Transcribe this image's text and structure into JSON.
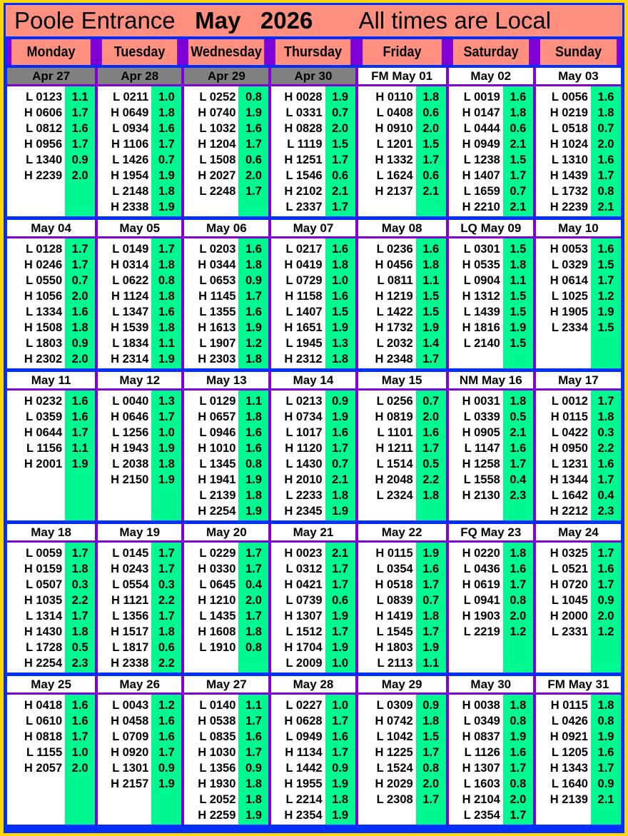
{
  "title": {
    "location": "Poole Entrance",
    "month": "May",
    "year": "2026",
    "note": "All times are Local"
  },
  "colors": {
    "header": "#FF9080",
    "heights": "#00F890",
    "past_date": "#808080",
    "column_divider": "#8000D8",
    "row_divider": "#0030FF",
    "frame": "#FFD700"
  },
  "days": [
    "Monday",
    "Tuesday",
    "Wednesday",
    "Thursday",
    "Friday",
    "Saturday",
    "Sunday"
  ],
  "weeks": [
    [
      {
        "date": "Apr 27",
        "past": true,
        "tides": [
          [
            "L 0123",
            "1.1"
          ],
          [
            "H 0606",
            "1.7"
          ],
          [
            "L 0812",
            "1.6"
          ],
          [
            "H 0956",
            "1.7"
          ],
          [
            "L 1340",
            "0.9"
          ],
          [
            "H 2239",
            "2.0"
          ]
        ]
      },
      {
        "date": "Apr 28",
        "past": true,
        "tides": [
          [
            "L 0211",
            "1.0"
          ],
          [
            "H 0649",
            "1.8"
          ],
          [
            "L 0934",
            "1.6"
          ],
          [
            "H 1106",
            "1.7"
          ],
          [
            "L 1426",
            "0.7"
          ],
          [
            "H 1954",
            "1.9"
          ],
          [
            "L 2148",
            "1.8"
          ],
          [
            "H 2338",
            "1.9"
          ]
        ]
      },
      {
        "date": "Apr 29",
        "past": true,
        "tides": [
          [
            "L 0252",
            "0.8"
          ],
          [
            "H 0740",
            "1.9"
          ],
          [
            "L 1032",
            "1.6"
          ],
          [
            "H 1204",
            "1.7"
          ],
          [
            "L 1508",
            "0.6"
          ],
          [
            "H 2027",
            "2.0"
          ],
          [
            "L 2248",
            "1.7"
          ]
        ]
      },
      {
        "date": "Apr 30",
        "past": true,
        "tides": [
          [
            "H 0028",
            "1.9"
          ],
          [
            "L 0331",
            "0.7"
          ],
          [
            "H 0828",
            "2.0"
          ],
          [
            "L 1119",
            "1.5"
          ],
          [
            "H 1251",
            "1.7"
          ],
          [
            "L 1546",
            "0.6"
          ],
          [
            "H 2102",
            "2.1"
          ],
          [
            "L 2337",
            "1.7"
          ]
        ]
      },
      {
        "date": "FM May 01",
        "tides": [
          [
            "H 0110",
            "1.8"
          ],
          [
            "L 0408",
            "0.6"
          ],
          [
            "H 0910",
            "2.0"
          ],
          [
            "L 1201",
            "1.5"
          ],
          [
            "H 1332",
            "1.7"
          ],
          [
            "L 1624",
            "0.6"
          ],
          [
            "H 2137",
            "2.1"
          ]
        ]
      },
      {
        "date": "May 02",
        "tides": [
          [
            "L 0019",
            "1.6"
          ],
          [
            "H 0147",
            "1.8"
          ],
          [
            "L 0444",
            "0.6"
          ],
          [
            "H 0949",
            "2.1"
          ],
          [
            "L 1238",
            "1.5"
          ],
          [
            "H 1407",
            "1.7"
          ],
          [
            "L 1659",
            "0.7"
          ],
          [
            "H 2210",
            "2.1"
          ]
        ]
      },
      {
        "date": "May 03",
        "tides": [
          [
            "L 0056",
            "1.6"
          ],
          [
            "H 0219",
            "1.8"
          ],
          [
            "L 0518",
            "0.7"
          ],
          [
            "H 1024",
            "2.0"
          ],
          [
            "L 1310",
            "1.6"
          ],
          [
            "H 1439",
            "1.7"
          ],
          [
            "L 1732",
            "0.8"
          ],
          [
            "H 2239",
            "2.1"
          ]
        ]
      }
    ],
    [
      {
        "date": "May 04",
        "tides": [
          [
            "L 0128",
            "1.7"
          ],
          [
            "H 0246",
            "1.7"
          ],
          [
            "L 0550",
            "0.7"
          ],
          [
            "H 1056",
            "2.0"
          ],
          [
            "L 1334",
            "1.6"
          ],
          [
            "H 1508",
            "1.8"
          ],
          [
            "L 1803",
            "0.9"
          ],
          [
            "H 2302",
            "2.0"
          ]
        ]
      },
      {
        "date": "May 05",
        "tides": [
          [
            "L 0149",
            "1.7"
          ],
          [
            "H 0314",
            "1.8"
          ],
          [
            "L 0622",
            "0.8"
          ],
          [
            "H 1124",
            "1.8"
          ],
          [
            "L 1347",
            "1.6"
          ],
          [
            "H 1539",
            "1.8"
          ],
          [
            "L 1834",
            "1.1"
          ],
          [
            "H 2314",
            "1.9"
          ]
        ]
      },
      {
        "date": "May 06",
        "tides": [
          [
            "L 0203",
            "1.6"
          ],
          [
            "H 0344",
            "1.8"
          ],
          [
            "L 0653",
            "0.9"
          ],
          [
            "H 1145",
            "1.7"
          ],
          [
            "L 1355",
            "1.6"
          ],
          [
            "H 1613",
            "1.9"
          ],
          [
            "L 1907",
            "1.2"
          ],
          [
            "H 2303",
            "1.8"
          ]
        ]
      },
      {
        "date": "May 07",
        "tides": [
          [
            "L 0217",
            "1.6"
          ],
          [
            "H 0419",
            "1.8"
          ],
          [
            "L 0729",
            "1.0"
          ],
          [
            "H 1158",
            "1.6"
          ],
          [
            "L 1407",
            "1.5"
          ],
          [
            "H 1651",
            "1.9"
          ],
          [
            "L 1945",
            "1.3"
          ],
          [
            "H 2312",
            "1.8"
          ]
        ]
      },
      {
        "date": "May 08",
        "tides": [
          [
            "L 0236",
            "1.6"
          ],
          [
            "H 0456",
            "1.8"
          ],
          [
            "L 0811",
            "1.1"
          ],
          [
            "H 1219",
            "1.5"
          ],
          [
            "L 1422",
            "1.5"
          ],
          [
            "H 1732",
            "1.9"
          ],
          [
            "L 2032",
            "1.4"
          ],
          [
            "H 2348",
            "1.7"
          ]
        ]
      },
      {
        "date": "LQ May 09",
        "tides": [
          [
            "L 0301",
            "1.5"
          ],
          [
            "H 0535",
            "1.8"
          ],
          [
            "L 0904",
            "1.1"
          ],
          [
            "H 1312",
            "1.5"
          ],
          [
            "L 1439",
            "1.5"
          ],
          [
            "H 1816",
            "1.9"
          ],
          [
            "L 2140",
            "1.5"
          ]
        ]
      },
      {
        "date": "May 10",
        "tides": [
          [
            "H 0053",
            "1.6"
          ],
          [
            "L 0329",
            "1.5"
          ],
          [
            "H 0614",
            "1.7"
          ],
          [
            "L 1025",
            "1.2"
          ],
          [
            "H 1905",
            "1.9"
          ],
          [
            "L 2334",
            "1.5"
          ]
        ]
      }
    ],
    [
      {
        "date": "May 11",
        "tides": [
          [
            "H 0232",
            "1.6"
          ],
          [
            "L 0359",
            "1.6"
          ],
          [
            "H 0644",
            "1.7"
          ],
          [
            "L 1156",
            "1.1"
          ],
          [
            "H 2001",
            "1.9"
          ]
        ]
      },
      {
        "date": "May 12",
        "tides": [
          [
            "L 0040",
            "1.3"
          ],
          [
            "H 0646",
            "1.7"
          ],
          [
            "L 1256",
            "1.0"
          ],
          [
            "H 1943",
            "1.9"
          ],
          [
            "L 2038",
            "1.8"
          ],
          [
            "H 2150",
            "1.9"
          ]
        ]
      },
      {
        "date": "May 13",
        "tides": [
          [
            "L 0129",
            "1.1"
          ],
          [
            "H 0657",
            "1.8"
          ],
          [
            "L 0946",
            "1.6"
          ],
          [
            "H 1010",
            "1.6"
          ],
          [
            "L 1345",
            "0.8"
          ],
          [
            "H 1941",
            "1.9"
          ],
          [
            "L 2139",
            "1.8"
          ],
          [
            "H 2254",
            "1.9"
          ]
        ]
      },
      {
        "date": "May 14",
        "tides": [
          [
            "L 0213",
            "0.9"
          ],
          [
            "H 0734",
            "1.9"
          ],
          [
            "L 1017",
            "1.6"
          ],
          [
            "H 1120",
            "1.7"
          ],
          [
            "L 1430",
            "0.7"
          ],
          [
            "H 2010",
            "2.1"
          ],
          [
            "L 2233",
            "1.8"
          ],
          [
            "H 2345",
            "1.9"
          ]
        ]
      },
      {
        "date": "May 15",
        "tides": [
          [
            "L 0256",
            "0.7"
          ],
          [
            "H 0819",
            "2.0"
          ],
          [
            "L 1101",
            "1.6"
          ],
          [
            "H 1211",
            "1.7"
          ],
          [
            "L 1514",
            "0.5"
          ],
          [
            "H 2048",
            "2.2"
          ],
          [
            "L 2324",
            "1.8"
          ]
        ]
      },
      {
        "date": "NM May 16",
        "tides": [
          [
            "H 0031",
            "1.8"
          ],
          [
            "L 0339",
            "0.5"
          ],
          [
            "H 0905",
            "2.1"
          ],
          [
            "L 1147",
            "1.6"
          ],
          [
            "H 1258",
            "1.7"
          ],
          [
            "L 1558",
            "0.4"
          ],
          [
            "H 2130",
            "2.3"
          ]
        ]
      },
      {
        "date": "May 17",
        "tides": [
          [
            "L 0012",
            "1.7"
          ],
          [
            "H 0115",
            "1.8"
          ],
          [
            "L 0422",
            "0.3"
          ],
          [
            "H 0950",
            "2.2"
          ],
          [
            "L 1231",
            "1.6"
          ],
          [
            "H 1344",
            "1.7"
          ],
          [
            "L 1642",
            "0.4"
          ],
          [
            "H 2212",
            "2.3"
          ]
        ]
      }
    ],
    [
      {
        "date": "May 18",
        "tides": [
          [
            "L 0059",
            "1.7"
          ],
          [
            "H 0159",
            "1.8"
          ],
          [
            "L 0507",
            "0.3"
          ],
          [
            "H 1035",
            "2.2"
          ],
          [
            "L 1314",
            "1.7"
          ],
          [
            "H 1430",
            "1.8"
          ],
          [
            "L 1728",
            "0.5"
          ],
          [
            "H 2254",
            "2.3"
          ]
        ]
      },
      {
        "date": "May 19",
        "tides": [
          [
            "L 0145",
            "1.7"
          ],
          [
            "H 0243",
            "1.7"
          ],
          [
            "L 0554",
            "0.3"
          ],
          [
            "H 1121",
            "2.2"
          ],
          [
            "L 1356",
            "1.7"
          ],
          [
            "H 1517",
            "1.8"
          ],
          [
            "L 1817",
            "0.6"
          ],
          [
            "H 2338",
            "2.2"
          ]
        ]
      },
      {
        "date": "May 20",
        "tides": [
          [
            "L 0229",
            "1.7"
          ],
          [
            "H 0330",
            "1.7"
          ],
          [
            "L 0645",
            "0.4"
          ],
          [
            "H 1210",
            "2.0"
          ],
          [
            "L 1435",
            "1.7"
          ],
          [
            "H 1608",
            "1.8"
          ],
          [
            "L 1910",
            "0.8"
          ]
        ]
      },
      {
        "date": "May 21",
        "tides": [
          [
            "H 0023",
            "2.1"
          ],
          [
            "L 0312",
            "1.7"
          ],
          [
            "H 0421",
            "1.7"
          ],
          [
            "L 0739",
            "0.6"
          ],
          [
            "H 1307",
            "1.9"
          ],
          [
            "L 1512",
            "1.7"
          ],
          [
            "H 1704",
            "1.9"
          ],
          [
            "L 2009",
            "1.0"
          ]
        ]
      },
      {
        "date": "May 22",
        "tides": [
          [
            "H 0115",
            "1.9"
          ],
          [
            "L 0354",
            "1.6"
          ],
          [
            "H 0518",
            "1.7"
          ],
          [
            "L 0839",
            "0.7"
          ],
          [
            "H 1419",
            "1.8"
          ],
          [
            "L 1545",
            "1.7"
          ],
          [
            "H 1803",
            "1.9"
          ],
          [
            "L 2113",
            "1.1"
          ]
        ]
      },
      {
        "date": "FQ May 23",
        "tides": [
          [
            "H 0220",
            "1.8"
          ],
          [
            "L 0436",
            "1.6"
          ],
          [
            "H 0619",
            "1.7"
          ],
          [
            "L 0941",
            "0.8"
          ],
          [
            "H 1903",
            "2.0"
          ],
          [
            "L 2219",
            "1.2"
          ]
        ]
      },
      {
        "date": "May 24",
        "tides": [
          [
            "H 0325",
            "1.7"
          ],
          [
            "L 0521",
            "1.6"
          ],
          [
            "H 0720",
            "1.7"
          ],
          [
            "L 1045",
            "0.9"
          ],
          [
            "H 2000",
            "2.0"
          ],
          [
            "L 2331",
            "1.2"
          ]
        ]
      }
    ],
    [
      {
        "date": "May 25",
        "tides": [
          [
            "H 0418",
            "1.6"
          ],
          [
            "L 0610",
            "1.6"
          ],
          [
            "H 0818",
            "1.7"
          ],
          [
            "L 1155",
            "1.0"
          ],
          [
            "H 2057",
            "2.0"
          ]
        ]
      },
      {
        "date": "May 26",
        "tides": [
          [
            "L 0043",
            "1.2"
          ],
          [
            "H 0458",
            "1.6"
          ],
          [
            "L 0709",
            "1.6"
          ],
          [
            "H 0920",
            "1.7"
          ],
          [
            "L 1301",
            "0.9"
          ],
          [
            "H 2157",
            "1.9"
          ]
        ]
      },
      {
        "date": "May 27",
        "tides": [
          [
            "L 0140",
            "1.1"
          ],
          [
            "H 0538",
            "1.7"
          ],
          [
            "L 0835",
            "1.6"
          ],
          [
            "H 1030",
            "1.7"
          ],
          [
            "L 1356",
            "0.9"
          ],
          [
            "H 1930",
            "1.8"
          ],
          [
            "L 2052",
            "1.8"
          ],
          [
            "H 2259",
            "1.9"
          ]
        ]
      },
      {
        "date": "May 28",
        "tides": [
          [
            "L 0227",
            "1.0"
          ],
          [
            "H 0628",
            "1.7"
          ],
          [
            "L 0949",
            "1.6"
          ],
          [
            "H 1134",
            "1.7"
          ],
          [
            "L 1442",
            "0.9"
          ],
          [
            "H 1955",
            "1.9"
          ],
          [
            "L 2214",
            "1.8"
          ],
          [
            "H 2354",
            "1.9"
          ]
        ]
      },
      {
        "date": "May 29",
        "tides": [
          [
            "L 0309",
            "0.9"
          ],
          [
            "H 0742",
            "1.8"
          ],
          [
            "L 1042",
            "1.5"
          ],
          [
            "H 1225",
            "1.7"
          ],
          [
            "L 1524",
            "0.8"
          ],
          [
            "H 2029",
            "2.0"
          ],
          [
            "L 2308",
            "1.7"
          ]
        ]
      },
      {
        "date": "May 30",
        "tides": [
          [
            "H 0038",
            "1.8"
          ],
          [
            "L 0349",
            "0.8"
          ],
          [
            "H 0837",
            "1.9"
          ],
          [
            "L 1126",
            "1.6"
          ],
          [
            "H 1307",
            "1.7"
          ],
          [
            "L 1603",
            "0.8"
          ],
          [
            "H 2104",
            "2.0"
          ],
          [
            "L 2354",
            "1.7"
          ]
        ]
      },
      {
        "date": "FM May 31",
        "tides": [
          [
            "H 0115",
            "1.8"
          ],
          [
            "L 0426",
            "0.8"
          ],
          [
            "H 0921",
            "1.9"
          ],
          [
            "L 1205",
            "1.6"
          ],
          [
            "H 1343",
            "1.7"
          ],
          [
            "L 1640",
            "0.9"
          ],
          [
            "H 2139",
            "2.1"
          ]
        ]
      }
    ]
  ]
}
